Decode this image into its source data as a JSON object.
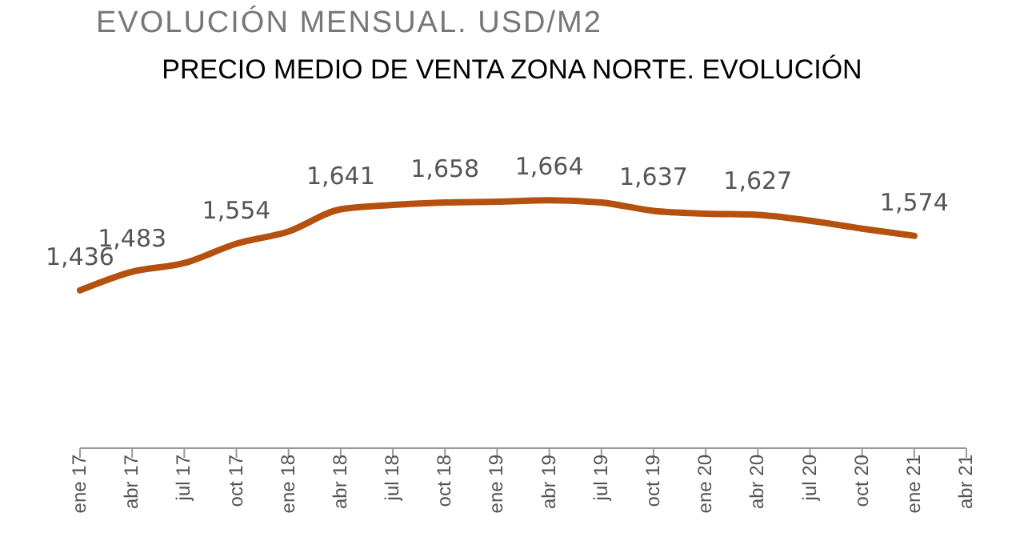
{
  "chart_data": {
    "type": "line",
    "title": "EVOLUCIÓN MENSUAL. USD/M2",
    "subtitle": "PRECIO MEDIO DE VENTA ZONA NORTE. EVOLUCIÓN",
    "categories": [
      "ene 17",
      "abr 17",
      "jul 17",
      "oct 17",
      "ene 18",
      "abr 18",
      "jul 18",
      "oct 18",
      "ene 19",
      "abr 19",
      "jul 19",
      "oct 19",
      "ene 20",
      "abr 20",
      "jul 20",
      "oct 20",
      "ene 21",
      "abr 21"
    ],
    "series": [
      {
        "color": "#b5500f",
        "values": [
          1436,
          1483,
          1505,
          1554,
          1585,
          1641,
          1652,
          1658,
          1660,
          1664,
          1658,
          1637,
          1630,
          1627,
          1612,
          1592,
          1574,
          null
        ],
        "value_labels": [
          "1,436",
          "1,483",
          null,
          "1,554",
          null,
          "1,641",
          null,
          "1,658",
          null,
          "1,664",
          null,
          "1,637",
          null,
          "1,627",
          null,
          null,
          "1,574",
          null
        ]
      }
    ],
    "tick_labels": "x",
    "marker": "none",
    "line_style": "solid"
  }
}
